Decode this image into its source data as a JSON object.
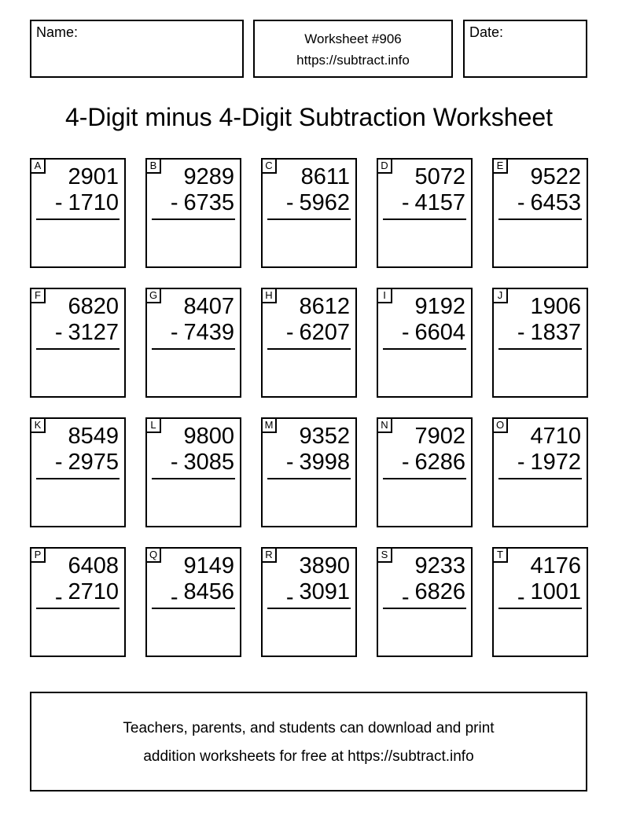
{
  "header": {
    "name_label": "Name:",
    "date_label": "Date:",
    "worksheet_number": "Worksheet #906",
    "worksheet_url": "https://subtract.info"
  },
  "title": "4-Digit minus 4-Digit Subtraction Worksheet",
  "operator": "-",
  "problems": [
    {
      "letter": "A",
      "minuend": "2901",
      "subtrahend": "1710"
    },
    {
      "letter": "B",
      "minuend": "9289",
      "subtrahend": "6735"
    },
    {
      "letter": "C",
      "minuend": "8611",
      "subtrahend": "5962"
    },
    {
      "letter": "D",
      "minuend": "5072",
      "subtrahend": "4157"
    },
    {
      "letter": "E",
      "minuend": "9522",
      "subtrahend": "6453"
    },
    {
      "letter": "F",
      "minuend": "6820",
      "subtrahend": "3127"
    },
    {
      "letter": "G",
      "minuend": "8407",
      "subtrahend": "7439"
    },
    {
      "letter": "H",
      "minuend": "8612",
      "subtrahend": "6207"
    },
    {
      "letter": "I",
      "minuend": "9192",
      "subtrahend": "6604"
    },
    {
      "letter": "J",
      "minuend": "1906",
      "subtrahend": "1837"
    },
    {
      "letter": "K",
      "minuend": "8549",
      "subtrahend": "2975"
    },
    {
      "letter": "L",
      "minuend": "9800",
      "subtrahend": "3085"
    },
    {
      "letter": "M",
      "minuend": "9352",
      "subtrahend": "3998"
    },
    {
      "letter": "N",
      "minuend": "7902",
      "subtrahend": "6286"
    },
    {
      "letter": "O",
      "minuend": "4710",
      "subtrahend": "1972"
    },
    {
      "letter": "P",
      "minuend": "6408",
      "subtrahend": "2710"
    },
    {
      "letter": "Q",
      "minuend": "9149",
      "subtrahend": "8456"
    },
    {
      "letter": "R",
      "minuend": "3890",
      "subtrahend": "3091"
    },
    {
      "letter": "S",
      "minuend": "9233",
      "subtrahend": "6826"
    },
    {
      "letter": "T",
      "minuend": "4176",
      "subtrahend": "1001"
    }
  ],
  "footer": {
    "line1": "Teachers, parents, and students can download and print",
    "line2": "addition worksheets for free at https://subtract.info"
  },
  "colors": {
    "ink": "#000000",
    "paper": "#ffffff"
  }
}
